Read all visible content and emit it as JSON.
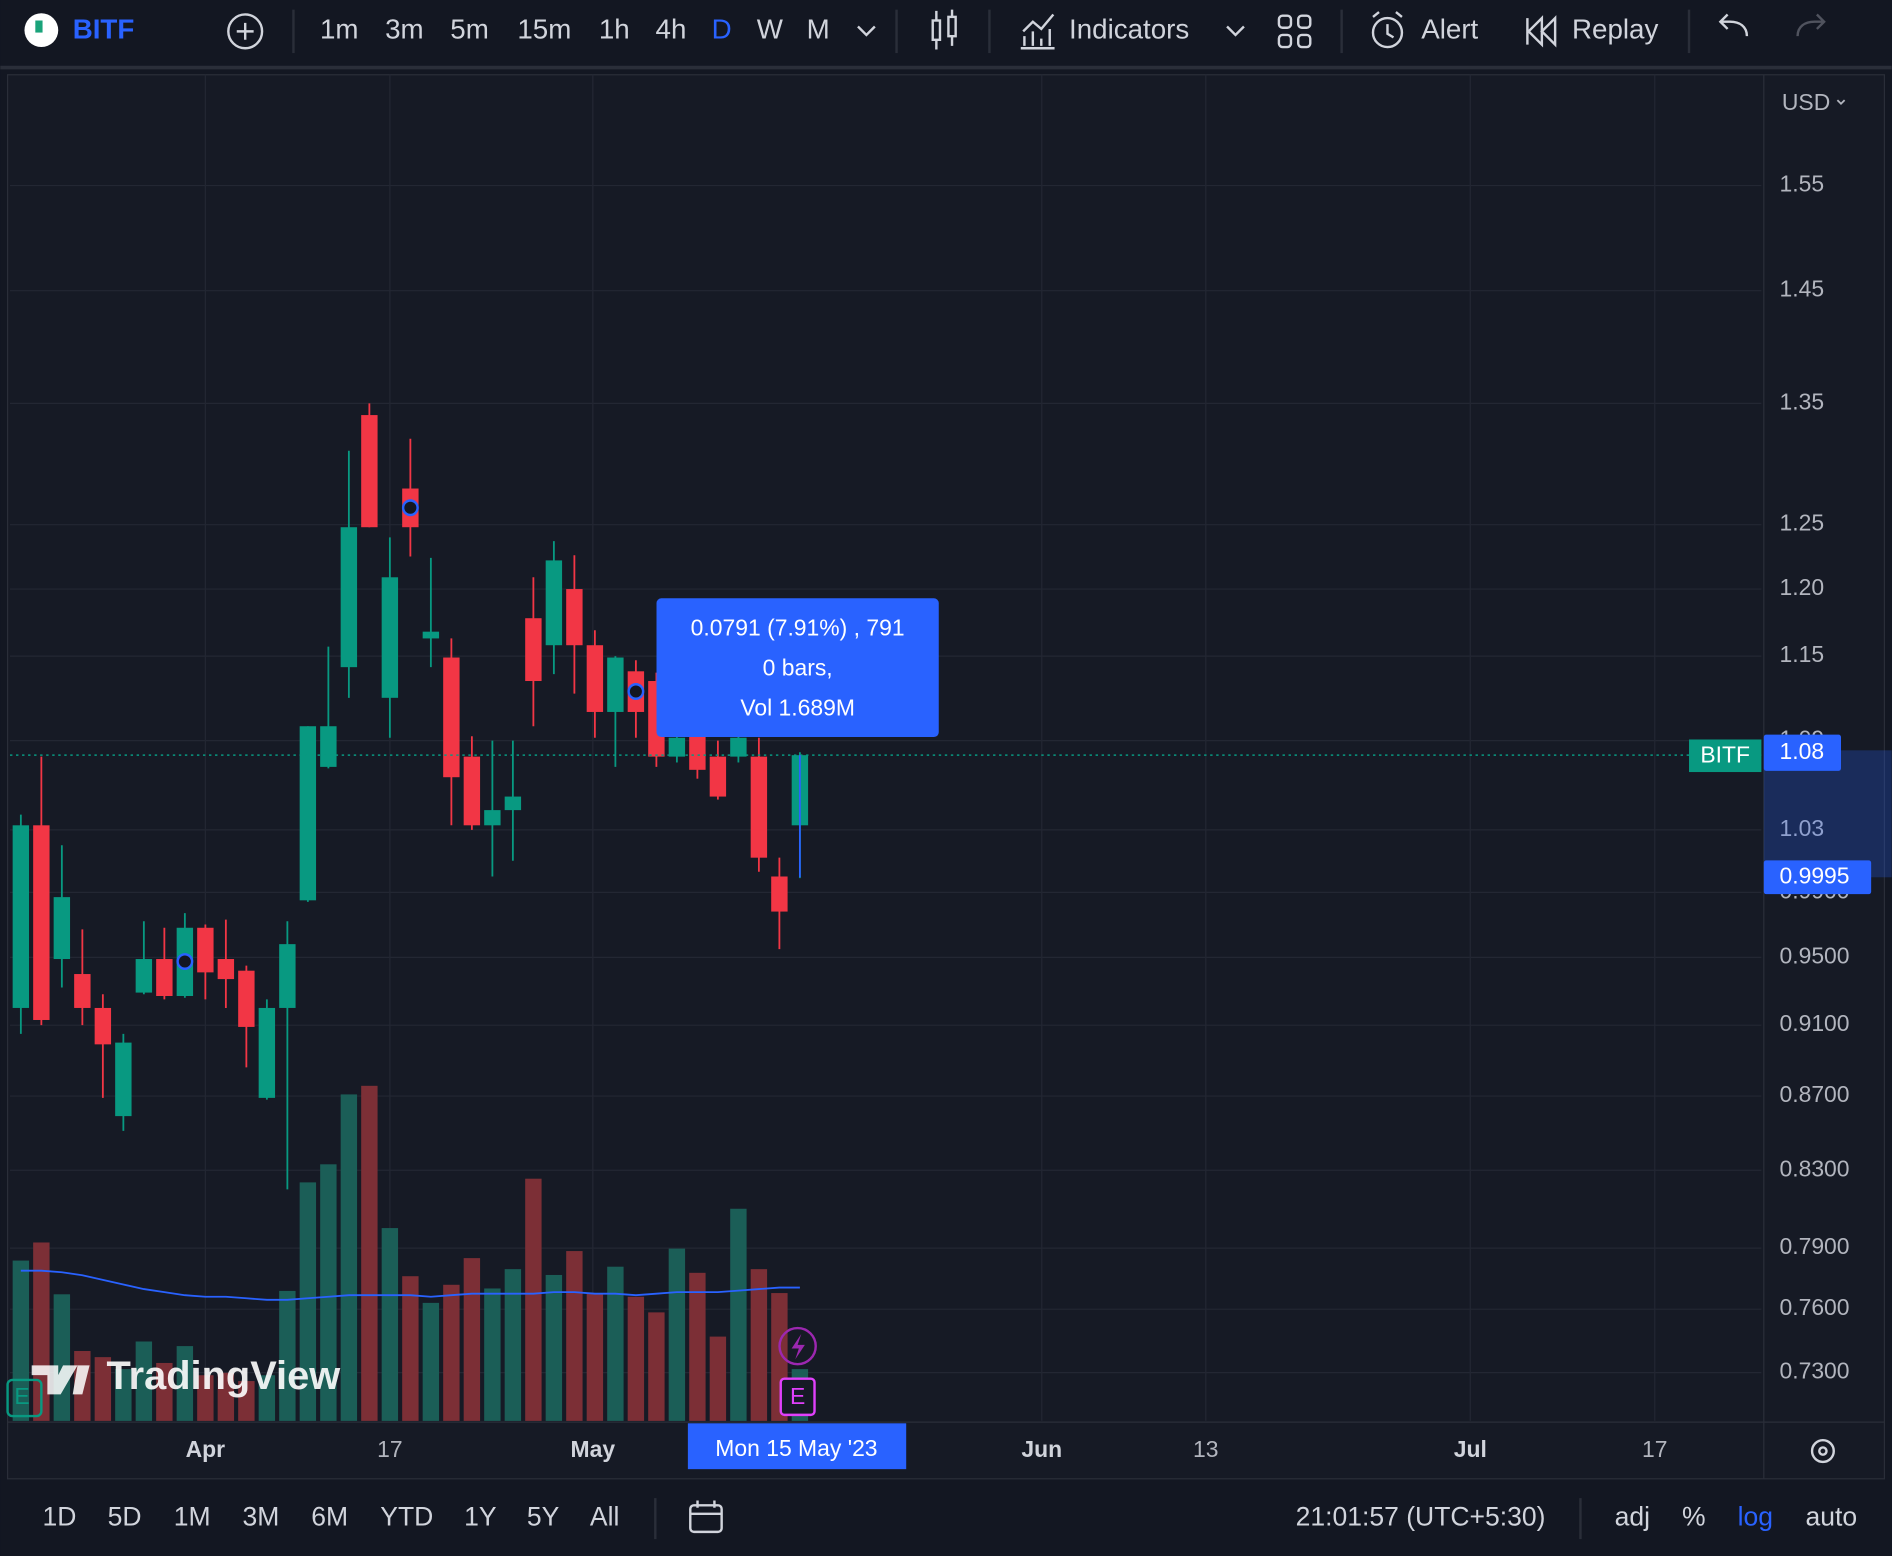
{
  "toolbar": {
    "symbol": "BITF",
    "intervals": [
      "1m",
      "3m",
      "5m",
      "15m",
      "1h",
      "4h",
      "D",
      "W",
      "M"
    ],
    "indicators": "Indicators",
    "alert": "Alert",
    "replay": "Replay"
  },
  "chart_data": {
    "type": "candlestick",
    "currency": "USD",
    "log_scale": true,
    "grid": true,
    "up_color": "#089981",
    "down_color": "#f23645",
    "volume_up_color": "#1b5e57",
    "volume_down_color": "#7c2f36",
    "volume_ma_color": "#2962ff",
    "open": [
      0.92,
      1.033,
      0.949,
      0.94,
      0.92,
      0.859,
      0.929,
      0.949,
      0.927,
      0.968,
      0.949,
      0.942,
      0.869,
      0.92,
      0.985,
      1.072,
      1.142,
      1.34,
      1.12,
      1.279,
      1.163,
      1.149,
      1.079,
      1.033,
      1.043,
      1.178,
      1.158,
      1.2,
      1.158,
      1.11,
      1.139,
      1.132,
      1.079,
      1.095,
      1.079,
      1.079,
      1.079,
      1.0,
      1.033
    ],
    "high": [
      1.04,
      1.079,
      1.02,
      0.967,
      0.928,
      0.905,
      0.972,
      0.968,
      0.977,
      0.97,
      0.973,
      0.945,
      0.925,
      0.972,
      1.1,
      1.157,
      1.31,
      1.35,
      1.24,
      1.32,
      1.224,
      1.163,
      1.093,
      1.09,
      1.09,
      1.209,
      1.237,
      1.226,
      1.169,
      1.15,
      1.147,
      1.138,
      1.1,
      1.1,
      1.09,
      1.1,
      1.092,
      1.012,
      1.082
    ],
    "low": [
      0.905,
      0.91,
      0.932,
      0.91,
      0.869,
      0.851,
      0.928,
      0.925,
      0.926,
      0.925,
      0.92,
      0.886,
      0.868,
      0.82,
      0.984,
      1.071,
      1.12,
      1.248,
      1.092,
      1.225,
      1.142,
      1.033,
      1.03,
      1.0,
      1.01,
      1.1,
      1.137,
      1.123,
      1.092,
      1.072,
      1.092,
      1.072,
      1.075,
      1.064,
      1.05,
      1.075,
      1.003,
      0.955,
      0.999
    ],
    "close": [
      1.033,
      0.913,
      0.987,
      0.92,
      0.899,
      0.9,
      0.949,
      0.927,
      0.968,
      0.941,
      0.937,
      0.909,
      0.92,
      0.958,
      1.1,
      1.1,
      1.248,
      1.248,
      1.209,
      1.248,
      1.168,
      1.065,
      1.033,
      1.043,
      1.052,
      1.132,
      1.222,
      1.158,
      1.11,
      1.149,
      1.11,
      1.079,
      1.092,
      1.07,
      1.052,
      1.092,
      1.012,
      0.978,
      1.08
    ],
    "volume": [
      5.23,
      5.82,
      4.13,
      2.28,
      2.08,
      1.69,
      2.59,
      1.89,
      2.44,
      1.49,
      1.57,
      1.3,
      1.49,
      4.24,
      7.78,
      8.37,
      10.65,
      10.93,
      6.29,
      4.72,
      3.85,
      4.44,
      5.31,
      4.32,
      4.95,
      7.9,
      4.76,
      5.54,
      4.17,
      5.03,
      4.05,
      3.54,
      5.62,
      4.83,
      2.75,
      6.92,
      4.95,
      4.17,
      1.689
    ],
    "volume_ma": [
      4.9,
      4.9,
      4.85,
      4.75,
      4.6,
      4.45,
      4.3,
      4.2,
      4.1,
      4.05,
      4.05,
      4.0,
      3.95,
      3.95,
      4.0,
      4.05,
      4.1,
      4.1,
      4.1,
      4.1,
      4.05,
      4.1,
      4.15,
      4.15,
      4.15,
      4.15,
      4.2,
      4.2,
      4.15,
      4.15,
      4.1,
      4.15,
      4.2,
      4.2,
      4.2,
      4.25,
      4.3,
      4.35,
      4.35
    ],
    "volume_lim": [
      0,
      12
    ],
    "ylim": [
      0.708,
      1.659
    ],
    "yticks": [
      {
        "value": 0.73,
        "label": "0.7300"
      },
      {
        "value": 0.76,
        "label": "0.7600"
      },
      {
        "value": 0.79,
        "label": "0.7900"
      },
      {
        "value": 0.83,
        "label": "0.8300"
      },
      {
        "value": 0.87,
        "label": "0.8700"
      },
      {
        "value": 0.91,
        "label": "0.9100"
      },
      {
        "value": 0.95,
        "label": "0.9500"
      },
      {
        "value": 0.99,
        "label": "0.9900"
      },
      1.03,
      1.09,
      1.15,
      {
        "value": 1.2,
        "label": "1.20"
      },
      1.25,
      1.35,
      1.45,
      1.55
    ],
    "xlim": [
      -0.53,
      84.9
    ],
    "xticks": [
      {
        "value": 9,
        "label": "Apr"
      },
      {
        "value": 18,
        "label": "17"
      },
      {
        "value": 27.9,
        "label": "May"
      },
      {
        "value": 49.8,
        "label": "Jun"
      },
      {
        "value": 57.8,
        "label": "13"
      },
      {
        "value": 70.7,
        "label": "Jul"
      },
      {
        "value": 79.7,
        "label": "17"
      }
    ],
    "last_price": {
      "label": "BITF",
      "value": 1.08
    },
    "crosshair_price": {
      "value": 0.9995,
      "label": "0.9995"
    },
    "crosshair_date": "Mon 15 May '23",
    "measure": [
      "0.0791 (7.91%) , 791",
      "0 bars,",
      "Vol 1.689M"
    ],
    "event_marker": "E",
    "watermark": "TradingView"
  },
  "footer": {
    "ranges": [
      "1D",
      "5D",
      "1M",
      "3M",
      "6M",
      "YTD",
      "1Y",
      "5Y",
      "All"
    ],
    "time": "21:01:57 (UTC+5:30)",
    "options": [
      "adj",
      "%",
      "log",
      "auto"
    ]
  }
}
